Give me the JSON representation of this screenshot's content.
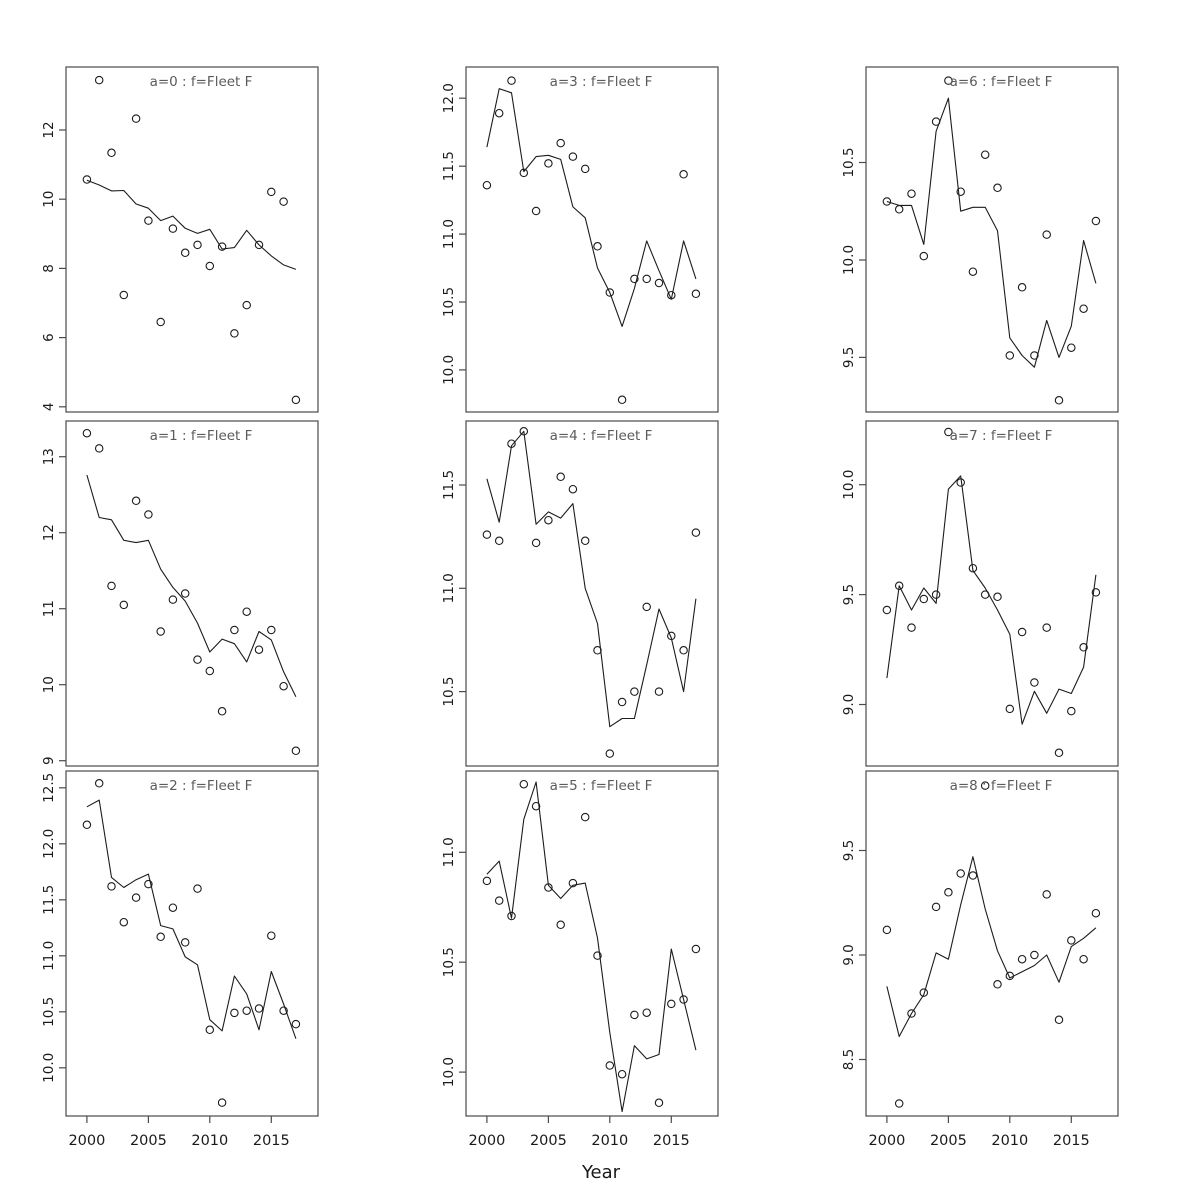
{
  "figure": {
    "xlabel": "Year",
    "colors": {
      "background": "#ffffff",
      "line": "#1c1c1c",
      "marker": "#1c1c1c",
      "panel_border": "#4a4a4a",
      "title_text": "#5b5b5b",
      "axis_text": "#1a1a1a"
    }
  },
  "chart_data": {
    "type": "scatter",
    "subtype": "scatter points with fitted line, 3x3 panel grid (column-major: a=0..2 col1, a=3..5 col2, a=6..8 col3)",
    "xlabel": "Year",
    "grid": "off",
    "legend": "none",
    "x": [
      2000,
      2001,
      2002,
      2003,
      2004,
      2005,
      2006,
      2007,
      2008,
      2009,
      2010,
      2011,
      2012,
      2013,
      2014,
      2015,
      2016,
      2017
    ],
    "xlim": [
      1998.3,
      2018.8
    ],
    "x_ticks": [
      2000,
      2005,
      2010,
      2015
    ],
    "x_tick_labels": [
      "2000",
      "2005",
      "2010",
      "2015"
    ],
    "panels": [
      {
        "id": "a0",
        "title": "a=0 : f=Fleet F",
        "row": 0,
        "col": 0,
        "ylim": [
          3.85,
          13.82
        ],
        "ytick_values": [
          4,
          6,
          8,
          10,
          12
        ],
        "ytick_labels": [
          "4",
          "6",
          "8",
          "10",
          "12"
        ],
        "observed": [
          10.57,
          13.44,
          11.34,
          7.23,
          12.33,
          9.38,
          6.45,
          9.15,
          8.45,
          8.68,
          8.07,
          8.63,
          6.12,
          6.94,
          8.68,
          10.21,
          9.93,
          4.2
        ],
        "fitted": [
          10.55,
          10.41,
          10.24,
          10.25,
          9.86,
          9.74,
          9.38,
          9.51,
          9.16,
          9.01,
          9.13,
          8.56,
          8.6,
          9.1,
          8.68,
          8.36,
          8.1,
          7.97
        ]
      },
      {
        "id": "a1",
        "title": "a=1 : f=Fleet F",
        "row": 1,
        "col": 0,
        "ylim": [
          8.93,
          13.47
        ],
        "ytick_values": [
          9,
          10,
          11,
          12,
          13
        ],
        "ytick_labels": [
          "9",
          "10",
          "11",
          "12",
          "13"
        ],
        "observed": [
          13.31,
          13.11,
          11.3,
          11.05,
          12.42,
          12.24,
          10.7,
          11.12,
          11.2,
          10.33,
          10.18,
          9.65,
          10.72,
          10.96,
          10.46,
          10.72,
          9.98,
          9.13
        ],
        "fitted": [
          12.76,
          12.2,
          12.17,
          11.9,
          11.87,
          11.9,
          11.52,
          11.28,
          11.1,
          10.81,
          10.43,
          10.6,
          10.54,
          10.3,
          10.7,
          10.59,
          10.17,
          9.84
        ]
      },
      {
        "id": "a2",
        "title": "a=2 : f=Fleet F",
        "row": 2,
        "col": 0,
        "ylim": [
          9.57,
          12.65
        ],
        "ytick_values": [
          10.0,
          10.5,
          11.0,
          11.5,
          12.0,
          12.5
        ],
        "ytick_labels": [
          "10.0",
          "10.5",
          "11.0",
          "11.5",
          "12.0",
          "12.5"
        ],
        "observed": [
          12.17,
          12.54,
          11.62,
          11.3,
          11.52,
          11.64,
          11.17,
          11.43,
          11.12,
          11.6,
          10.34,
          9.69,
          10.49,
          10.51,
          10.53,
          11.18,
          10.51,
          10.39
        ],
        "fitted": [
          12.33,
          12.39,
          11.7,
          11.61,
          11.68,
          11.73,
          11.27,
          11.24,
          10.99,
          10.92,
          10.43,
          10.33,
          10.82,
          10.66,
          10.34,
          10.86,
          10.57,
          10.26
        ]
      },
      {
        "id": "a3",
        "title": "a=3 : f=Fleet F",
        "row": 0,
        "col": 1,
        "ylim": [
          9.69,
          12.23
        ],
        "ytick_values": [
          10.0,
          10.5,
          11.0,
          11.5,
          12.0
        ],
        "ytick_labels": [
          "10.0",
          "10.5",
          "11.0",
          "11.5",
          "12.0"
        ],
        "observed": [
          11.36,
          11.89,
          12.13,
          11.45,
          11.17,
          11.52,
          11.67,
          11.57,
          11.48,
          10.91,
          10.57,
          9.78,
          10.67,
          10.67,
          10.64,
          10.55,
          11.44,
          10.56
        ],
        "fitted": [
          11.64,
          12.07,
          12.04,
          11.46,
          11.57,
          11.58,
          11.55,
          11.2,
          11.12,
          10.75,
          10.57,
          10.32,
          10.6,
          10.95,
          10.73,
          10.52,
          10.95,
          10.67
        ]
      },
      {
        "id": "a4",
        "title": "a=4 : f=Fleet F",
        "row": 1,
        "col": 1,
        "ylim": [
          10.14,
          11.81
        ],
        "ytick_values": [
          10.5,
          11.0,
          11.5
        ],
        "ytick_labels": [
          "10.5",
          "11.0",
          "11.5"
        ],
        "observed": [
          11.26,
          11.23,
          11.7,
          11.76,
          11.22,
          11.33,
          11.54,
          11.48,
          11.23,
          10.7,
          10.2,
          10.45,
          10.5,
          10.91,
          10.5,
          10.77,
          10.7,
          11.27
        ],
        "fitted": [
          11.53,
          11.32,
          11.69,
          11.76,
          11.31,
          11.37,
          11.34,
          11.41,
          11.0,
          10.83,
          10.33,
          10.37,
          10.37,
          10.63,
          10.9,
          10.76,
          10.5,
          10.95
        ]
      },
      {
        "id": "a5",
        "title": "a=5 : f=Fleet F",
        "row": 2,
        "col": 1,
        "ylim": [
          9.8,
          11.37
        ],
        "ytick_values": [
          10.0,
          10.5,
          11.0
        ],
        "ytick_labels": [
          "10.0",
          "10.5",
          "11.0"
        ],
        "observed": [
          10.87,
          10.78,
          10.71,
          11.31,
          11.21,
          10.84,
          10.67,
          10.86,
          11.16,
          10.53,
          10.03,
          9.99,
          10.26,
          10.27,
          9.86,
          10.31,
          10.33,
          10.56
        ],
        "fitted": [
          10.9,
          10.96,
          10.7,
          11.15,
          11.32,
          10.85,
          10.79,
          10.85,
          10.86,
          10.61,
          10.18,
          9.82,
          10.12,
          10.06,
          10.08,
          10.56,
          10.33,
          10.1
        ]
      },
      {
        "id": "a6",
        "title": "a=6 : f=Fleet F",
        "row": 0,
        "col": 2,
        "ylim": [
          9.22,
          10.99
        ],
        "ytick_values": [
          9.5,
          10.0,
          10.5
        ],
        "ytick_labels": [
          "9.5",
          "10.0",
          "10.5"
        ],
        "observed": [
          10.3,
          10.26,
          10.34,
          10.02,
          10.71,
          10.92,
          10.35,
          9.94,
          10.54,
          10.37,
          9.51,
          9.86,
          9.51,
          10.13,
          9.28,
          9.55,
          9.75,
          10.2
        ],
        "fitted": [
          10.3,
          10.28,
          10.28,
          10.08,
          10.66,
          10.83,
          10.25,
          10.27,
          10.27,
          10.15,
          9.6,
          9.51,
          9.45,
          9.69,
          9.5,
          9.66,
          10.1,
          9.88
        ]
      },
      {
        "id": "a7",
        "title": "a=7 : f=Fleet F",
        "row": 1,
        "col": 2,
        "ylim": [
          8.72,
          10.29
        ],
        "ytick_values": [
          9.0,
          9.5,
          10.0
        ],
        "ytick_labels": [
          "9.0",
          "9.5",
          "10.0"
        ],
        "observed": [
          9.43,
          9.54,
          9.35,
          9.48,
          9.5,
          10.24,
          10.01,
          9.62,
          9.5,
          9.49,
          8.98,
          9.33,
          9.1,
          9.35,
          8.78,
          8.97,
          9.26,
          9.51
        ],
        "fitted": [
          9.12,
          9.54,
          9.43,
          9.53,
          9.46,
          9.98,
          10.04,
          9.61,
          9.53,
          9.43,
          9.32,
          8.91,
          9.06,
          8.96,
          9.07,
          9.05,
          9.17,
          9.59
        ]
      },
      {
        "id": "a8",
        "title": "a=8 : f=Fleet F",
        "row": 2,
        "col": 2,
        "ylim": [
          8.23,
          9.88
        ],
        "ytick_values": [
          8.5,
          9.0,
          9.5
        ],
        "ytick_labels": [
          "8.5",
          "9.0",
          "9.5"
        ],
        "observed": [
          9.12,
          8.29,
          8.72,
          8.82,
          9.23,
          9.3,
          9.39,
          9.38,
          9.81,
          8.86,
          8.9,
          8.98,
          9.0,
          9.29,
          8.69,
          9.07,
          8.98,
          9.2
        ],
        "fitted": [
          8.85,
          8.61,
          8.72,
          8.81,
          9.01,
          8.98,
          9.24,
          9.47,
          9.22,
          9.02,
          8.89,
          8.92,
          8.95,
          9.0,
          8.87,
          9.04,
          9.08,
          9.13
        ]
      }
    ]
  }
}
